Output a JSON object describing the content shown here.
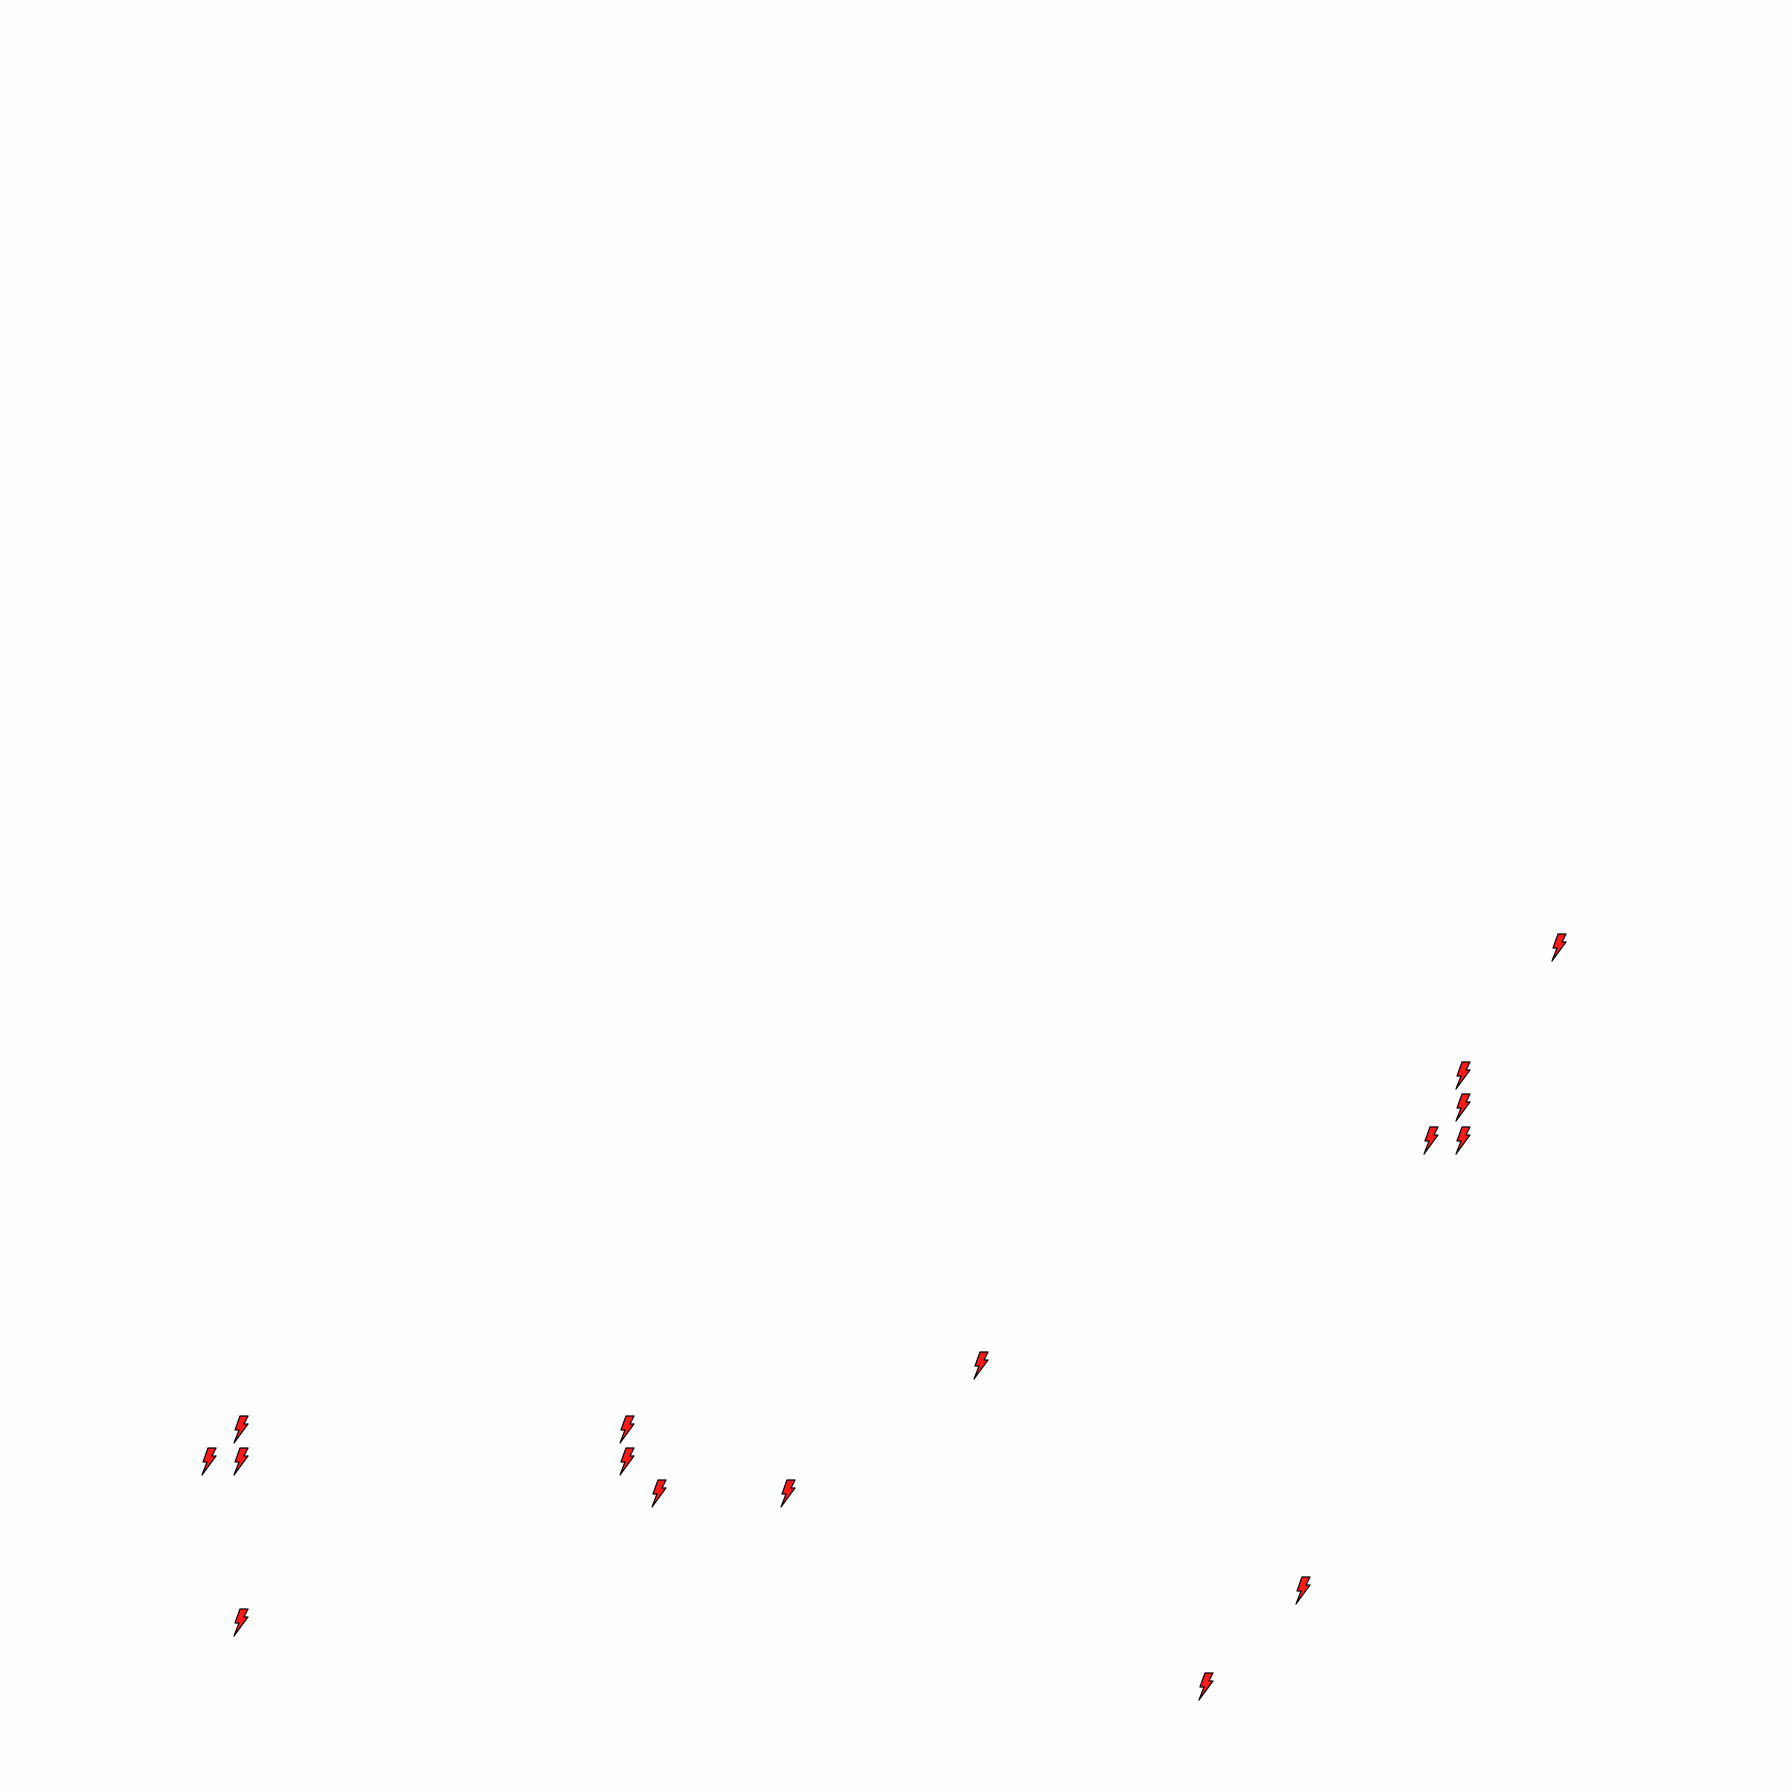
{
  "map": {
    "marker_icon": "lightning-bolt-icon",
    "marker_fill": "#ff1a1a",
    "marker_stroke": "#000000",
    "background": "#fefefe"
  }
}
